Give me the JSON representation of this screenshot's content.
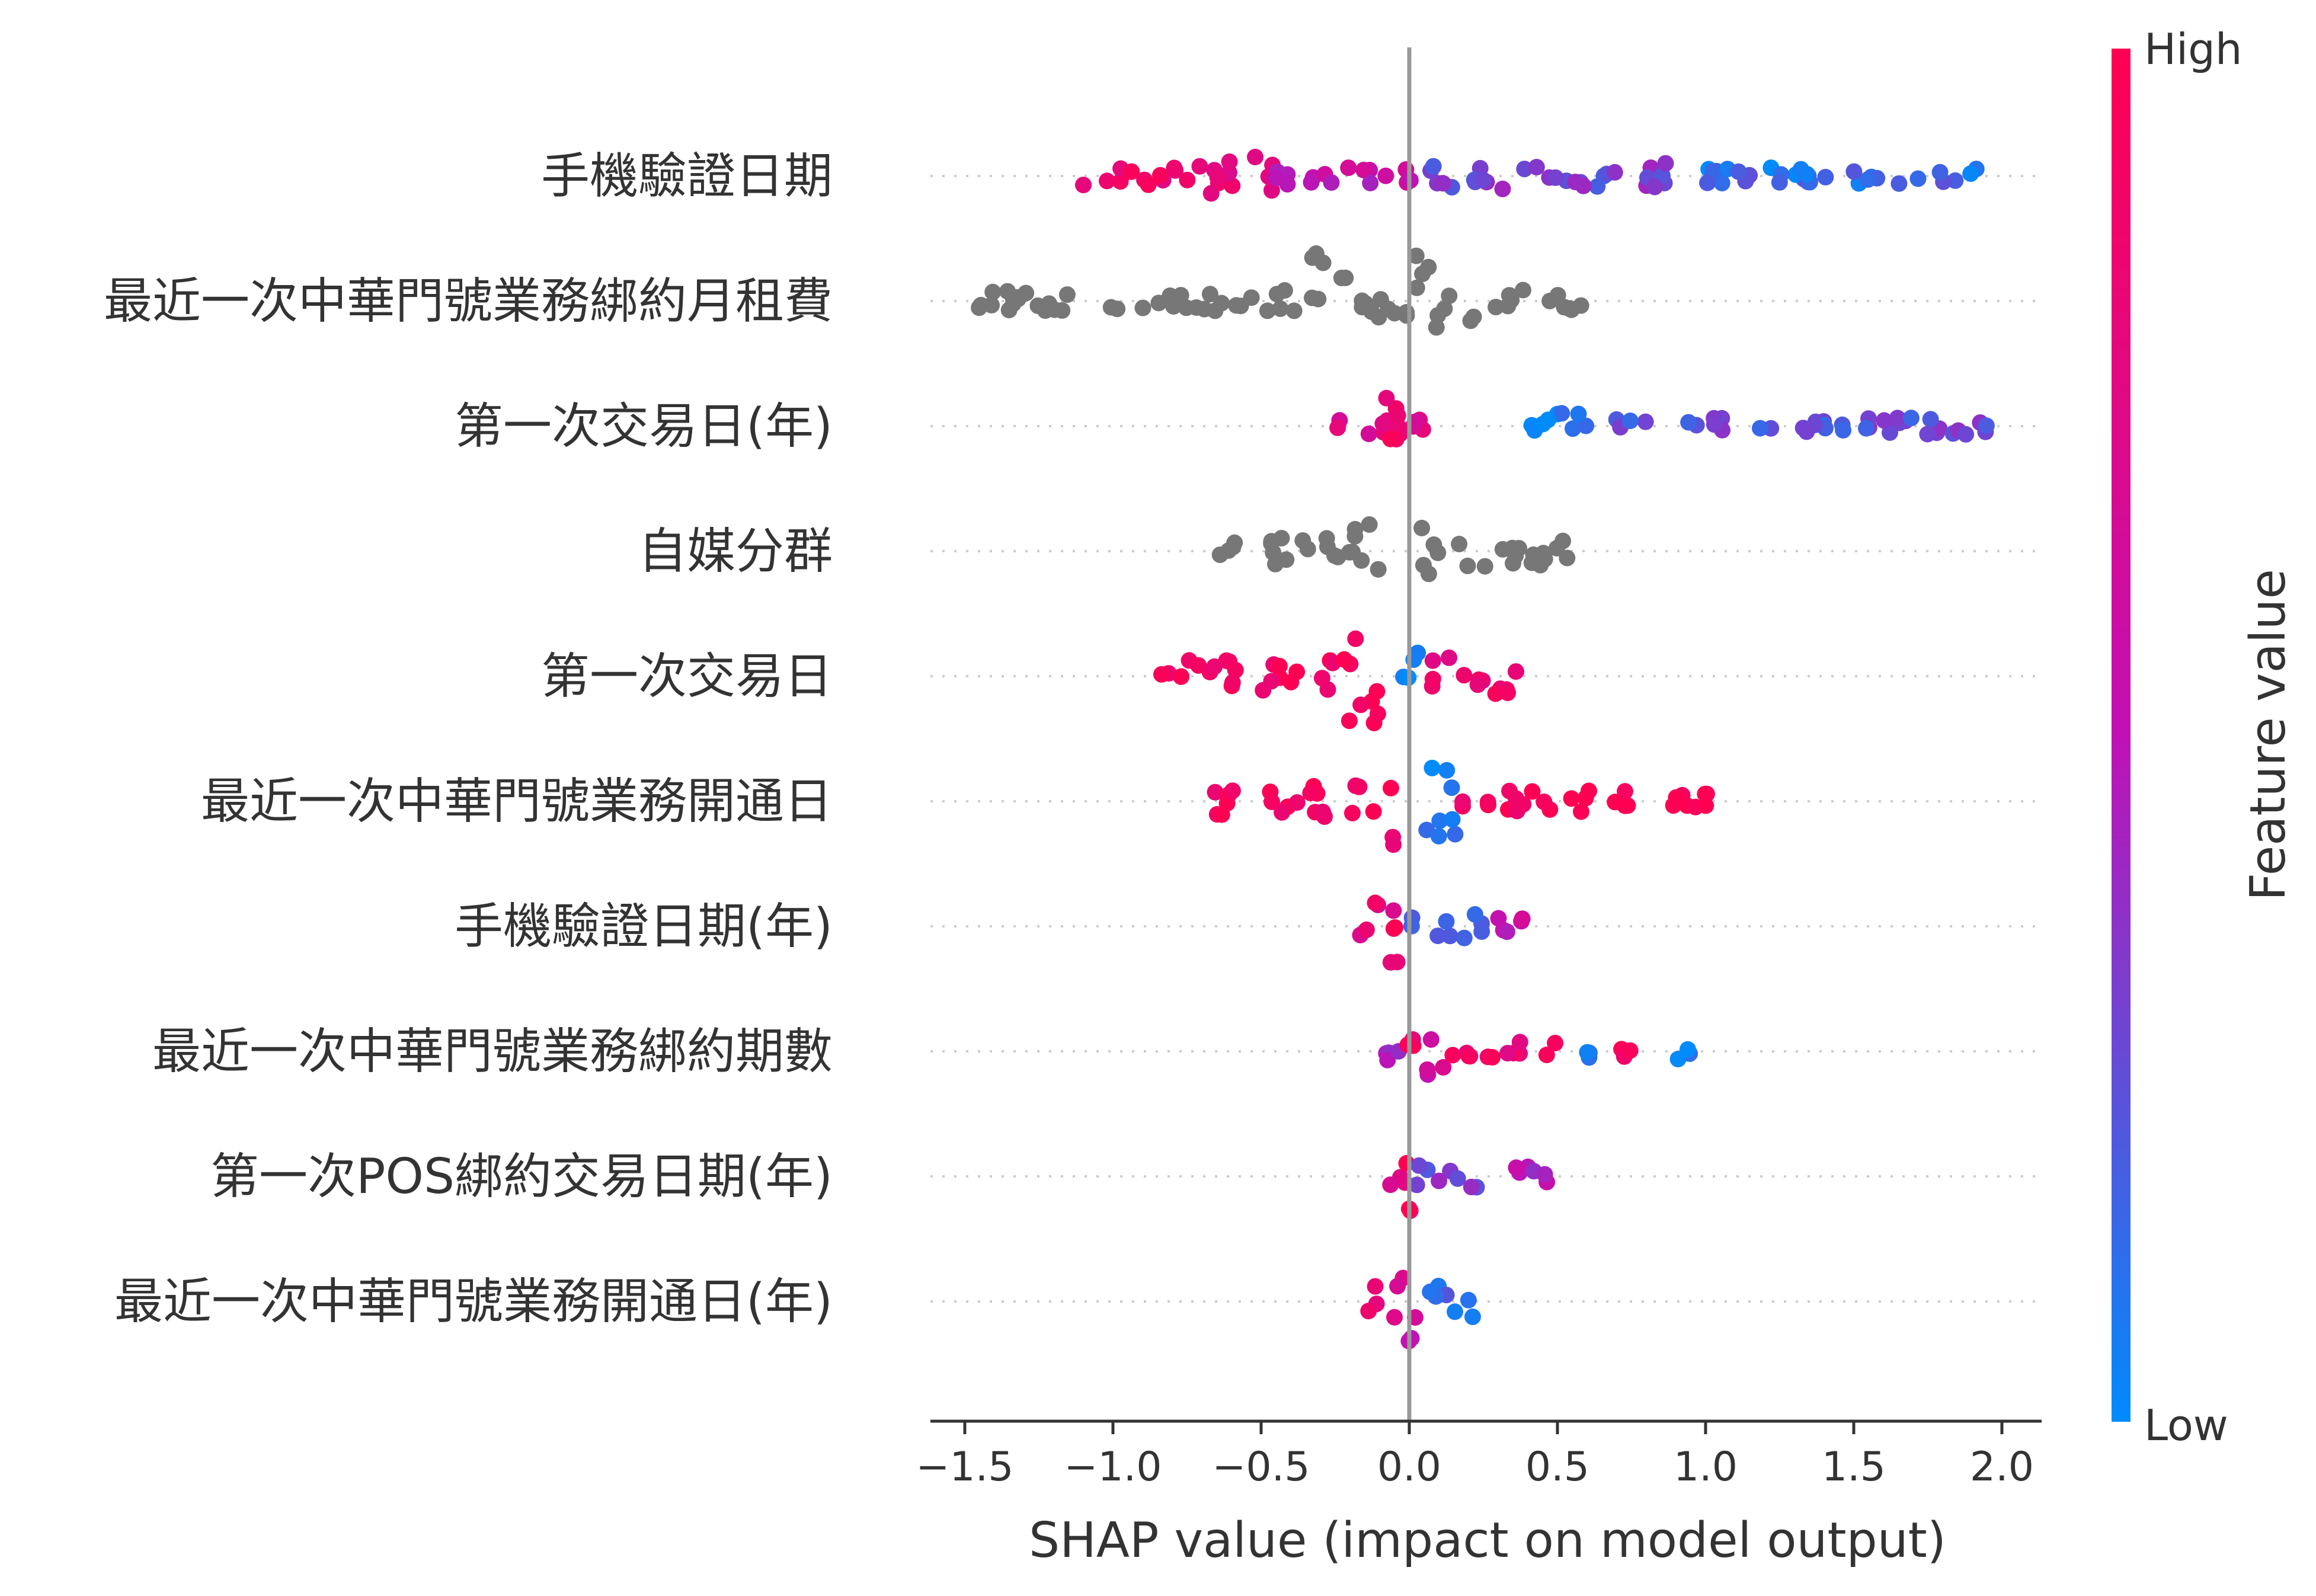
{
  "chart_data": {
    "type": "scatter",
    "subtype": "shap-beeswarm",
    "title": "",
    "xlabel": "SHAP value (impact on model output)",
    "ylabel": "",
    "xlim": [
      -1.62,
      2.13
    ],
    "xticks": [
      -1.5,
      -1.0,
      -0.5,
      0.0,
      0.5,
      1.0,
      1.5,
      2.0
    ],
    "xtick_labels": [
      "−1.5",
      "−1.0",
      "−0.5",
      "0.0",
      "0.5",
      "1.0",
      "1.5",
      "2.0"
    ],
    "zero_line": 0.0,
    "grid": false,
    "colorbar": {
      "title": "Feature value",
      "high_label": "High",
      "low_label": "Low",
      "high_color": "#ff0052",
      "mid_color": "#c111b4",
      "low_color": "#008bfb",
      "missing_color": "#777777"
    },
    "features": [
      {
        "name": "手機驗證日期",
        "colored": true,
        "segments": [
          {
            "from": -1.1,
            "to": -0.72,
            "color": 0.85,
            "thickness": 0.2
          },
          {
            "from": -0.72,
            "to": -0.5,
            "color": 0.78,
            "thickness": 0.4
          },
          {
            "from": -0.49,
            "to": -0.46,
            "color": 0.72,
            "thickness": 1.0
          },
          {
            "from": -0.45,
            "to": 0.05,
            "color": 0.55,
            "thickness": 0.15
          },
          {
            "from": 0.05,
            "to": 0.9,
            "color": 0.3,
            "thickness": 0.25
          },
          {
            "from": 0.9,
            "to": 1.92,
            "color": 0.12,
            "thickness": 0.15
          }
        ]
      },
      {
        "name": "最近一次中華門號業務綁約月租費",
        "colored": false,
        "segments": [
          {
            "from": -1.47,
            "to": -0.33,
            "color": null,
            "thickness": 0.2
          },
          {
            "from": -0.33,
            "to": -0.26,
            "color": null,
            "thickness": 1.0
          },
          {
            "from": -0.26,
            "to": 0.0,
            "color": null,
            "thickness": 0.5
          },
          {
            "from": 0.02,
            "to": 0.09,
            "color": null,
            "thickness": 0.85
          },
          {
            "from": 0.09,
            "to": 0.23,
            "color": null,
            "thickness": 0.5
          },
          {
            "from": 0.23,
            "to": 0.59,
            "color": null,
            "thickness": 0.22
          }
        ]
      },
      {
        "name": "第一次交易日(年)",
        "colored": true,
        "segments": [
          {
            "from": -0.25,
            "to": 0.1,
            "color": 0.72,
            "thickness": 0.2
          },
          {
            "from": -0.09,
            "to": -0.01,
            "color": 0.88,
            "thickness": 0.9
          },
          {
            "from": 0.4,
            "to": 0.65,
            "color": 0.05,
            "thickness": 0.3
          },
          {
            "from": 0.65,
            "to": 1.97,
            "color": 0.25,
            "thickness": 0.14
          }
        ]
      },
      {
        "name": "自媒分群",
        "colored": false,
        "segments": [
          {
            "from": -0.67,
            "to": -0.2,
            "color": null,
            "thickness": 0.25
          },
          {
            "from": -0.2,
            "to": -0.06,
            "color": null,
            "thickness": 0.5
          },
          {
            "from": 0.03,
            "to": 0.08,
            "color": null,
            "thickness": 0.85
          },
          {
            "from": 0.08,
            "to": 0.57,
            "color": null,
            "thickness": 0.3
          }
        ]
      },
      {
        "name": "第一次交易日",
        "colored": true,
        "segments": [
          {
            "from": -0.87,
            "to": -0.22,
            "color": 0.95,
            "thickness": 0.3
          },
          {
            "from": -0.22,
            "to": -0.08,
            "color": 0.93,
            "thickness": 1.0
          },
          {
            "from": -0.02,
            "to": 0.07,
            "color": 0.05,
            "thickness": 0.45
          },
          {
            "from": 0.07,
            "to": 0.39,
            "color": 0.85,
            "thickness": 0.35
          }
        ]
      },
      {
        "name": "最近一次中華門號業務開通日",
        "colored": true,
        "segments": [
          {
            "from": -0.66,
            "to": -0.1,
            "color": 0.95,
            "thickness": 0.3
          },
          {
            "from": -0.08,
            "to": -0.04,
            "color": 0.93,
            "thickness": 0.9
          },
          {
            "from": 0.04,
            "to": 0.18,
            "color": 0.05,
            "thickness": 0.75
          },
          {
            "from": 0.18,
            "to": 1.05,
            "color": 0.95,
            "thickness": 0.2
          }
        ]
      },
      {
        "name": "手機驗證日期(年)",
        "colored": true,
        "segments": [
          {
            "from": -0.17,
            "to": -0.03,
            "color": 0.8,
            "thickness": 0.5
          },
          {
            "from": -0.07,
            "to": -0.04,
            "color": 0.9,
            "thickness": 0.95
          },
          {
            "from": 0.0,
            "to": 0.25,
            "color": 0.2,
            "thickness": 0.3
          },
          {
            "from": 0.25,
            "to": 0.41,
            "color": 0.55,
            "thickness": 0.2
          }
        ]
      },
      {
        "name": "最近一次中華門號業務綁約期數",
        "colored": true,
        "segments": [
          {
            "from": -0.13,
            "to": 0.0,
            "color": 0.5,
            "thickness": 0.2
          },
          {
            "from": -0.01,
            "to": 0.04,
            "color": 0.9,
            "thickness": 0.95
          },
          {
            "from": 0.04,
            "to": 0.12,
            "color": 0.6,
            "thickness": 0.45
          },
          {
            "from": 0.12,
            "to": 0.5,
            "color": 0.85,
            "thickness": 0.18
          },
          {
            "from": 0.6,
            "to": 0.65,
            "color": 0.1,
            "thickness": 0.15
          },
          {
            "from": 0.7,
            "to": 0.75,
            "color": 0.95,
            "thickness": 0.15
          },
          {
            "from": 0.9,
            "to": 0.95,
            "color": 0.05,
            "thickness": 0.15
          }
        ]
      },
      {
        "name": "第一次POS綁約交易日期(年)",
        "colored": true,
        "segments": [
          {
            "from": -0.07,
            "to": 0.0,
            "color": 0.7,
            "thickness": 0.2
          },
          {
            "from": -0.02,
            "to": 0.02,
            "color": 0.95,
            "thickness": 0.85
          },
          {
            "from": 0.02,
            "to": 0.25,
            "color": 0.3,
            "thickness": 0.22
          },
          {
            "from": 0.3,
            "to": 0.47,
            "color": 0.5,
            "thickness": 0.18
          }
        ]
      },
      {
        "name": "最近一次中華門號業務開通日(年)",
        "colored": true,
        "segments": [
          {
            "from": -0.16,
            "to": -0.05,
            "color": 0.8,
            "thickness": 0.3
          },
          {
            "from": -0.04,
            "to": 0.04,
            "color": 0.6,
            "thickness": 0.9
          },
          {
            "from": 0.04,
            "to": 0.22,
            "color": 0.15,
            "thickness": 0.3
          }
        ]
      }
    ]
  }
}
